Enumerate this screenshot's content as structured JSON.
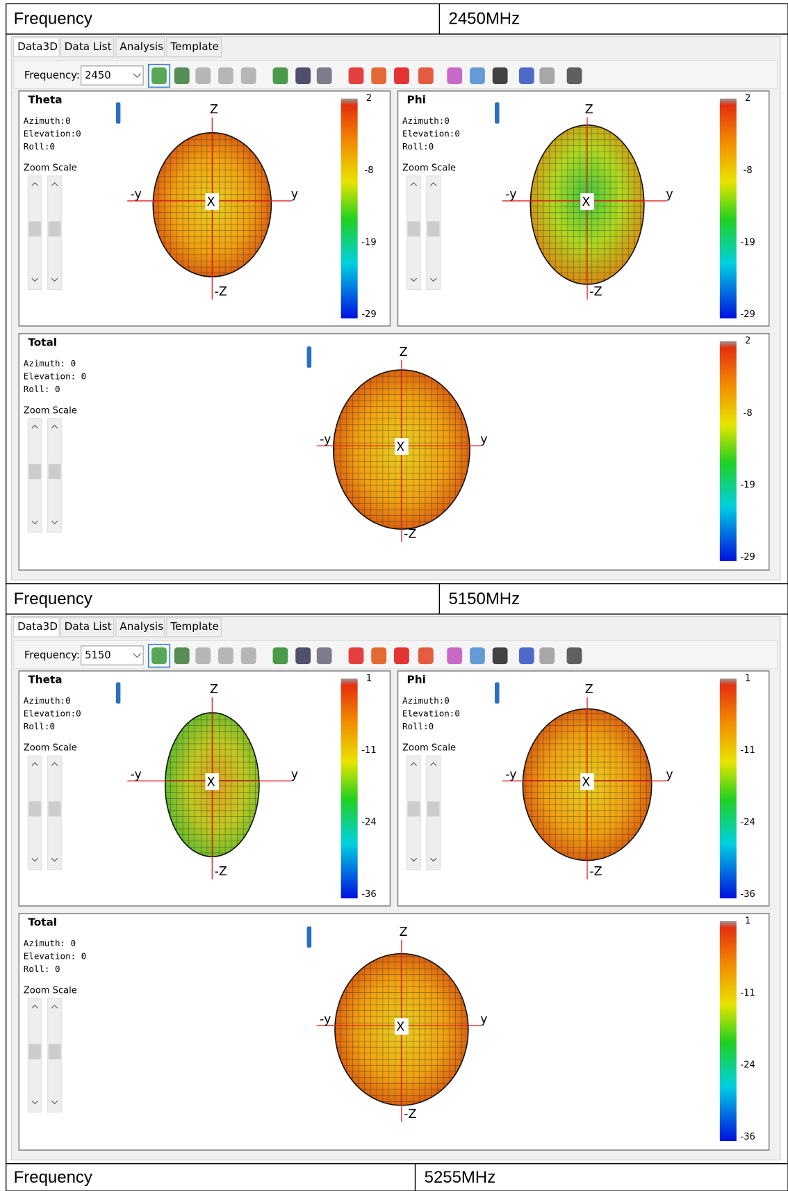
{
  "sections": [
    {
      "frequency_label": "Frequency",
      "frequency_value": "2450MHz",
      "window": {
        "tabs": [
          "Data3D",
          "Data List",
          "Analysis",
          "Template"
        ],
        "frequency_label": "Frequency:",
        "frequency_value": "2450",
        "views": [
          {
            "title": "Theta",
            "azimuth": "Azimuth:0",
            "elevation": "Elevation:0",
            "roll": "Roll:0",
            "zoom_scale": "Zoom Scale",
            "axes": [
              "Z",
              "-y",
              "y",
              "-Z",
              "X"
            ],
            "colorbar_ticks": [
              2,
              -8,
              -19,
              -29
            ]
          },
          {
            "title": "Phi",
            "azimuth": "Azimuth:0",
            "elevation": "Elevation:0",
            "roll": "Roll:0",
            "zoom_scale": "Zoom Scale",
            "axes": [
              "Z",
              "-y",
              "y",
              "-Z",
              "X"
            ],
            "colorbar_ticks": [
              2,
              -8,
              -19,
              -29
            ]
          },
          {
            "title": "Total",
            "azimuth": "Azimuth: 0",
            "elevation": "Elevation: 0",
            "roll": "Roll: 0",
            "zoom_scale": "Zoom Scale",
            "axes": [
              "Z",
              "-y",
              "y",
              "-Z",
              "X"
            ],
            "colorbar_ticks": [
              2,
              -8,
              -19,
              -29
            ]
          }
        ]
      }
    },
    {
      "frequency_label": "Frequency",
      "frequency_value": "5150MHz",
      "window": {
        "tabs": [
          "Data3D",
          "Data List",
          "Analysis",
          "Template"
        ],
        "frequency_label": "Frequency:",
        "frequency_value": "5150",
        "views": [
          {
            "title": "Theta",
            "azimuth": "Azimuth:0",
            "elevation": "Elevation:0",
            "roll": "Roll:0",
            "zoom_scale": "Zoom Scale",
            "axes": [
              "Z",
              "-y",
              "y",
              "-Z",
              "X"
            ],
            "colorbar_ticks": [
              1,
              -11,
              -24,
              -36
            ]
          },
          {
            "title": "Phi",
            "azimuth": "Azimuth:0",
            "elevation": "Elevation:0",
            "roll": "Roll:0",
            "zoom_scale": "Zoom Scale",
            "axes": [
              "Z",
              "-y",
              "y",
              "-Z",
              "X"
            ],
            "colorbar_ticks": [
              1,
              -11,
              -24,
              -36
            ]
          },
          {
            "title": "Total",
            "azimuth": "Azimuth: 0",
            "elevation": "Elevation: 0",
            "roll": "Roll: 0",
            "zoom_scale": "Zoom Scale",
            "axes": [
              "Z",
              "-y",
              "y",
              "-Z",
              "X"
            ],
            "colorbar_ticks": [
              1,
              -11,
              -24,
              -36
            ]
          }
        ]
      }
    },
    {
      "frequency_label": "Frequency",
      "frequency_value": "5255MHz"
    }
  ]
}
